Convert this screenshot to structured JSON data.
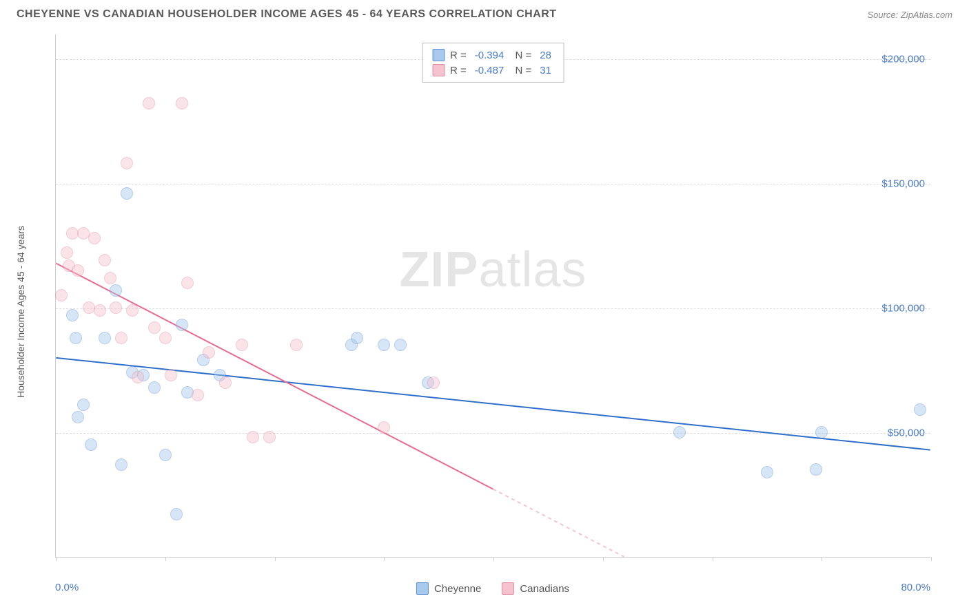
{
  "header": {
    "title": "CHEYENNE VS CANADIAN HOUSEHOLDER INCOME AGES 45 - 64 YEARS CORRELATION CHART",
    "source": "Source: ZipAtlas.com"
  },
  "watermark": {
    "bold": "ZIP",
    "light": "atlas"
  },
  "chart": {
    "type": "scatter",
    "ylabel": "Householder Income Ages 45 - 64 years",
    "xlim": [
      0,
      80
    ],
    "ylim": [
      0,
      210000
    ],
    "x_min_label": "0.0%",
    "x_max_label": "80.0%",
    "x_ticks": [
      0,
      10,
      20,
      30,
      40,
      50,
      60,
      70,
      80
    ],
    "y_gridlines": [
      {
        "value": 50000,
        "label": "$50,000"
      },
      {
        "value": 100000,
        "label": "$100,000"
      },
      {
        "value": 150000,
        "label": "$150,000"
      },
      {
        "value": 200000,
        "label": "$200,000"
      }
    ],
    "background_color": "#ffffff",
    "grid_color": "#dddddd",
    "axis_color": "#cccccc",
    "tick_label_color": "#4a7bc8",
    "point_radius": 9,
    "point_opacity": 0.45,
    "series": [
      {
        "name": "Cheyenne",
        "color_fill": "#a8c8ec",
        "color_stroke": "#5b8fd6",
        "R": "-0.394",
        "N": "28",
        "trend": {
          "x1": 0,
          "y1": 80000,
          "x2": 80,
          "y2": 43000,
          "color": "#2e6fc9",
          "width": 2
        },
        "points": [
          [
            1.5,
            97000
          ],
          [
            1.8,
            88000
          ],
          [
            2.0,
            56000
          ],
          [
            2.5,
            61000
          ],
          [
            3.2,
            45000
          ],
          [
            4.5,
            88000
          ],
          [
            5.5,
            107000
          ],
          [
            6.0,
            37000
          ],
          [
            6.5,
            146000
          ],
          [
            7.0,
            74000
          ],
          [
            8.0,
            73000
          ],
          [
            9.0,
            68000
          ],
          [
            10.0,
            41000
          ],
          [
            11.5,
            93000
          ],
          [
            12.0,
            66000
          ],
          [
            13.5,
            79000
          ],
          [
            15.0,
            73000
          ],
          [
            27.0,
            85000
          ],
          [
            27.5,
            88000
          ],
          [
            30.0,
            85000
          ],
          [
            31.5,
            85000
          ],
          [
            34.0,
            70000
          ],
          [
            57.0,
            50000
          ],
          [
            65.0,
            34000
          ],
          [
            69.5,
            35000
          ],
          [
            70.0,
            50000
          ],
          [
            79.0,
            59000
          ],
          [
            11.0,
            17000
          ]
        ]
      },
      {
        "name": "Canadians",
        "color_fill": "#f5c2cf",
        "color_stroke": "#e28ba3",
        "R": "-0.487",
        "N": "31",
        "trend": {
          "x1": 0,
          "y1": 118000,
          "x2": 52,
          "y2": 0,
          "color": "#e96b8f",
          "width": 2,
          "dash_after_x": 40
        },
        "points": [
          [
            0.5,
            105000
          ],
          [
            1.0,
            122000
          ],
          [
            1.2,
            117000
          ],
          [
            1.5,
            130000
          ],
          [
            2.0,
            115000
          ],
          [
            2.5,
            130000
          ],
          [
            3.0,
            100000
          ],
          [
            3.5,
            128000
          ],
          [
            4.0,
            99000
          ],
          [
            4.5,
            119000
          ],
          [
            5.0,
            112000
          ],
          [
            5.5,
            100000
          ],
          [
            6.0,
            88000
          ],
          [
            6.5,
            158000
          ],
          [
            7.0,
            99000
          ],
          [
            7.5,
            72000
          ],
          [
            8.5,
            182000
          ],
          [
            9.0,
            92000
          ],
          [
            10.0,
            88000
          ],
          [
            10.5,
            73000
          ],
          [
            11.5,
            182000
          ],
          [
            12.0,
            110000
          ],
          [
            13.0,
            65000
          ],
          [
            14.0,
            82000
          ],
          [
            15.5,
            70000
          ],
          [
            17.0,
            85000
          ],
          [
            18.0,
            48000
          ],
          [
            19.5,
            48000
          ],
          [
            22.0,
            85000
          ],
          [
            30.0,
            52000
          ],
          [
            34.5,
            70000
          ]
        ]
      }
    ],
    "legend_bottom": [
      {
        "label": "Cheyenne",
        "fill": "#a8c8ec",
        "stroke": "#5b8fd6"
      },
      {
        "label": "Canadians",
        "fill": "#f5c2cf",
        "stroke": "#e28ba3"
      }
    ]
  }
}
